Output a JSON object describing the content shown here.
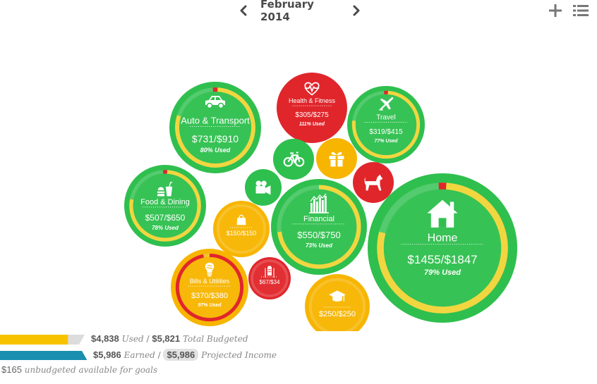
{
  "header": {
    "month": "February 2014",
    "prev_icon": "chevron-left-icon",
    "next_icon": "chevron-right-icon",
    "add_icon": "plus-icon",
    "list_icon": "list-icon"
  },
  "colors": {
    "green": "#2fbf4e",
    "yellow": "#f7b500",
    "red": "#e0262b",
    "progress_yellow": "#f2d640",
    "budget_bar": "#f7c300",
    "income_bar": "#1b8fb0"
  },
  "categories": [
    {
      "id": "auto",
      "name": "Auto & Transport",
      "amount": "$731/$910",
      "used": "80% Used",
      "ratio": 0.8,
      "color": "green",
      "icon": "car-icon"
    },
    {
      "id": "health",
      "name": "Health & Fitness",
      "amount": "$305/$275",
      "used": "111% Used",
      "ratio": 1.11,
      "color": "red",
      "icon": "heart-pulse-icon"
    },
    {
      "id": "travel",
      "name": "Travel",
      "amount": "$319/$415",
      "used": "77% Used",
      "ratio": 0.77,
      "color": "green",
      "icon": "airplane-icon"
    },
    {
      "id": "bike",
      "name": "",
      "amount": "",
      "used": "",
      "color": "green",
      "icon": "bicycle-icon"
    },
    {
      "id": "gift",
      "name": "",
      "amount": "",
      "used": "",
      "color": "yellow",
      "icon": "gift-icon"
    },
    {
      "id": "pets",
      "name": "",
      "amount": "",
      "used": "",
      "color": "red",
      "icon": "dog-icon"
    },
    {
      "id": "ent",
      "name": "",
      "amount": "",
      "used": "",
      "color": "green",
      "icon": "video-camera-icon"
    },
    {
      "id": "food",
      "name": "Food & Dining",
      "amount": "$507/$650",
      "used": "78% Used",
      "ratio": 0.78,
      "color": "green",
      "icon": "food-icon"
    },
    {
      "id": "shopping",
      "name": "",
      "amount": "$150/$150",
      "used": "",
      "color": "yellow",
      "icon": "shopping-bag-icon"
    },
    {
      "id": "financial",
      "name": "Financial",
      "amount": "$550/$750",
      "used": "73% Used",
      "ratio": 0.73,
      "color": "green",
      "icon": "bar-chart-icon"
    },
    {
      "id": "home",
      "name": "Home",
      "amount": "$1455/$1847",
      "used": "79% Used",
      "ratio": 0.79,
      "color": "green",
      "icon": "house-icon"
    },
    {
      "id": "bills",
      "name": "Bills & Utilities",
      "amount": "$370/$380",
      "used": "97% Used",
      "ratio": 0.97,
      "color": "yellow",
      "icon": "lightbulb-icon"
    },
    {
      "id": "kids",
      "name": "",
      "amount": "$67/$34",
      "used": "",
      "color": "red",
      "icon": "baby-icon"
    },
    {
      "id": "education",
      "name": "",
      "amount": "$250/$250",
      "used": "",
      "color": "yellow",
      "icon": "graduation-cap-icon"
    }
  ],
  "summary": {
    "used_amount": "$4,838",
    "used_label": "Used",
    "separator": "/",
    "total_budgeted": "$5,821",
    "total_budgeted_label": "Total Budgeted",
    "budget_fill": 0.83,
    "earned_amount": "$5,986",
    "earned_label": "Earned",
    "projected_amount": "$5,986",
    "projected_label": "Projected Income",
    "income_fill": 1.0,
    "unbudgeted_amount": "$165",
    "unbudgeted_label": "unbudgeted available for goals"
  }
}
